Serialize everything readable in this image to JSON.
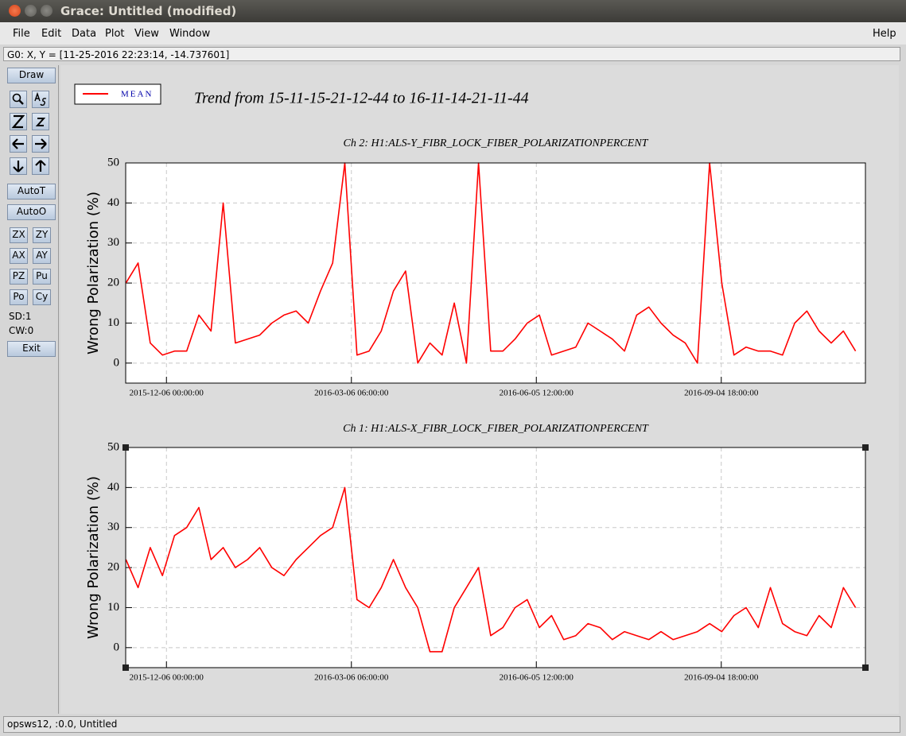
{
  "window": {
    "title": "Grace: Untitled (modified)"
  },
  "menu": [
    "File",
    "Edit",
    "Data",
    "Plot",
    "View",
    "Window"
  ],
  "help": "Help",
  "locator": "G0: X, Y = [11-25-2016 22:23:14, -14.737601]",
  "toolbar": {
    "top": "Draw",
    "auto": [
      "AutoT",
      "AutoO"
    ],
    "pairs": [
      [
        "ZX",
        "ZY"
      ],
      [
        "AX",
        "AY"
      ],
      [
        "PZ",
        "Pu"
      ],
      [
        "Po",
        "Cy"
      ]
    ],
    "info": [
      "SD:1",
      "CW:0"
    ],
    "exit": "Exit"
  },
  "status": "opsws12, :0.0, Untitled",
  "plot_title": "Trend from 15-11-15-21-12-44 to 16-11-14-21-11-44",
  "chart_data": [
    {
      "type": "line",
      "title": "Ch 2: H1:ALS-Y_FIBR_LOCK_FIBER_POLARIZATIONPERCENT",
      "y_label": "Wrong Polarization (%)",
      "x": [
        "2015-11-16 00:00:00",
        "2015-11-22 00:00:00",
        "2015-11-28 00:00:00",
        "2015-12-04 00:00:00",
        "2015-12-10 00:00:00",
        "2015-12-16 00:00:00",
        "2015-12-22 00:00:00",
        "2015-12-28 00:00:00",
        "2016-01-03 00:00:00",
        "2016-01-09 00:00:00",
        "2016-01-15 00:00:00",
        "2016-01-21 00:00:00",
        "2016-01-27 00:00:00",
        "2016-02-02 00:00:00",
        "2016-02-08 00:00:00",
        "2016-02-14 00:00:00",
        "2016-02-20 00:00:00",
        "2016-02-26 00:00:00",
        "2016-03-03 00:00:00",
        "2016-03-09 00:00:00",
        "2016-03-15 00:00:00",
        "2016-03-21 00:00:00",
        "2016-03-27 00:00:00",
        "2016-04-02 00:00:00",
        "2016-04-08 00:00:00",
        "2016-04-14 00:00:00",
        "2016-04-20 00:00:00",
        "2016-04-26 00:00:00",
        "2016-05-02 00:00:00",
        "2016-05-08 00:00:00",
        "2016-05-14 00:00:00",
        "2016-05-20 00:00:00",
        "2016-05-26 00:00:00",
        "2016-06-01 00:00:00",
        "2016-06-07 00:00:00",
        "2016-06-13 00:00:00",
        "2016-06-19 00:00:00",
        "2016-06-25 00:00:00",
        "2016-07-01 00:00:00",
        "2016-07-07 00:00:00",
        "2016-07-13 00:00:00",
        "2016-07-19 00:00:00",
        "2016-07-25 00:00:00",
        "2016-07-31 00:00:00",
        "2016-08-06 00:00:00",
        "2016-08-12 00:00:00",
        "2016-08-18 00:00:00",
        "2016-08-24 00:00:00",
        "2016-08-30 00:00:00",
        "2016-09-05 00:00:00",
        "2016-09-11 00:00:00",
        "2016-09-17 00:00:00",
        "2016-09-23 00:00:00",
        "2016-09-29 00:00:00",
        "2016-10-05 00:00:00",
        "2016-10-11 00:00:00",
        "2016-10-17 00:00:00",
        "2016-10-23 00:00:00",
        "2016-10-29 00:00:00",
        "2016-11-04 00:00:00",
        "2016-11-10 00:00:00"
      ],
      "series": [
        {
          "name": "MEAN",
          "color": "#ff0000",
          "values": [
            20,
            25,
            5,
            2,
            3,
            3,
            12,
            8,
            40,
            5,
            6,
            7,
            10,
            12,
            13,
            10,
            18,
            25,
            50,
            2,
            3,
            8,
            18,
            23,
            0,
            5,
            2,
            15,
            0,
            50,
            3,
            3,
            6,
            10,
            12,
            2,
            3,
            4,
            10,
            8,
            6,
            3,
            12,
            14,
            10,
            7,
            5,
            0,
            50,
            20,
            2,
            4,
            3,
            3,
            2,
            10,
            13,
            8,
            5,
            8,
            3
          ]
        }
      ],
      "xlim": [
        "2015-11-15 21:12:44",
        "2016-11-14 21:11:44"
      ],
      "xticks": [
        "2015-12-06 00:00:00",
        "2016-03-06 06:00:00",
        "2016-06-05 12:00:00",
        "2016-09-04 18:00:00"
      ],
      "ylim": [
        -5,
        50
      ],
      "yticks": [
        0,
        10,
        20,
        30,
        40,
        50
      ],
      "grid": true
    },
    {
      "type": "line",
      "title": "Ch 1: H1:ALS-X_FIBR_LOCK_FIBER_POLARIZATIONPERCENT",
      "y_label": "Wrong Polarization (%)",
      "x": [
        "2015-11-16 00:00:00",
        "2015-11-22 00:00:00",
        "2015-11-28 00:00:00",
        "2015-12-04 00:00:00",
        "2015-12-10 00:00:00",
        "2015-12-16 00:00:00",
        "2015-12-22 00:00:00",
        "2015-12-28 00:00:00",
        "2016-01-03 00:00:00",
        "2016-01-09 00:00:00",
        "2016-01-15 00:00:00",
        "2016-01-21 00:00:00",
        "2016-01-27 00:00:00",
        "2016-02-02 00:00:00",
        "2016-02-08 00:00:00",
        "2016-02-14 00:00:00",
        "2016-02-20 00:00:00",
        "2016-02-26 00:00:00",
        "2016-03-03 00:00:00",
        "2016-03-09 00:00:00",
        "2016-03-15 00:00:00",
        "2016-03-21 00:00:00",
        "2016-03-27 00:00:00",
        "2016-04-02 00:00:00",
        "2016-04-08 00:00:00",
        "2016-04-14 00:00:00",
        "2016-04-20 00:00:00",
        "2016-04-26 00:00:00",
        "2016-05-02 00:00:00",
        "2016-05-08 00:00:00",
        "2016-05-14 00:00:00",
        "2016-05-20 00:00:00",
        "2016-05-26 00:00:00",
        "2016-06-01 00:00:00",
        "2016-06-07 00:00:00",
        "2016-06-13 00:00:00",
        "2016-06-19 00:00:00",
        "2016-06-25 00:00:00",
        "2016-07-01 00:00:00",
        "2016-07-07 00:00:00",
        "2016-07-13 00:00:00",
        "2016-07-19 00:00:00",
        "2016-07-25 00:00:00",
        "2016-07-31 00:00:00",
        "2016-08-06 00:00:00",
        "2016-08-12 00:00:00",
        "2016-08-18 00:00:00",
        "2016-08-24 00:00:00",
        "2016-08-30 00:00:00",
        "2016-09-05 00:00:00",
        "2016-09-11 00:00:00",
        "2016-09-17 00:00:00",
        "2016-09-23 00:00:00",
        "2016-09-29 00:00:00",
        "2016-10-05 00:00:00",
        "2016-10-11 00:00:00",
        "2016-10-17 00:00:00",
        "2016-10-23 00:00:00",
        "2016-10-29 00:00:00",
        "2016-11-04 00:00:00",
        "2016-11-10 00:00:00"
      ],
      "series": [
        {
          "color": "#ff0000",
          "values": [
            22,
            15,
            25,
            18,
            28,
            30,
            35,
            22,
            25,
            20,
            22,
            25,
            20,
            18,
            22,
            25,
            28,
            30,
            40,
            12,
            10,
            15,
            22,
            15,
            10,
            -1,
            -1,
            10,
            15,
            20,
            3,
            5,
            10,
            12,
            5,
            8,
            2,
            3,
            6,
            5,
            2,
            4,
            3,
            2,
            4,
            2,
            3,
            4,
            6,
            4,
            8,
            10,
            5,
            15,
            6,
            4,
            3,
            8,
            5,
            15,
            10
          ]
        }
      ],
      "xlim": [
        "2015-11-15 21:12:44",
        "2016-11-14 21:11:44"
      ],
      "xticks": [
        "2015-12-06 00:00:00",
        "2016-03-06 06:00:00",
        "2016-06-05 12:00:00",
        "2016-09-04 18:00:00"
      ],
      "ylim": [
        -5,
        50
      ],
      "yticks": [
        0,
        10,
        20,
        30,
        40,
        50
      ],
      "grid": true
    }
  ]
}
